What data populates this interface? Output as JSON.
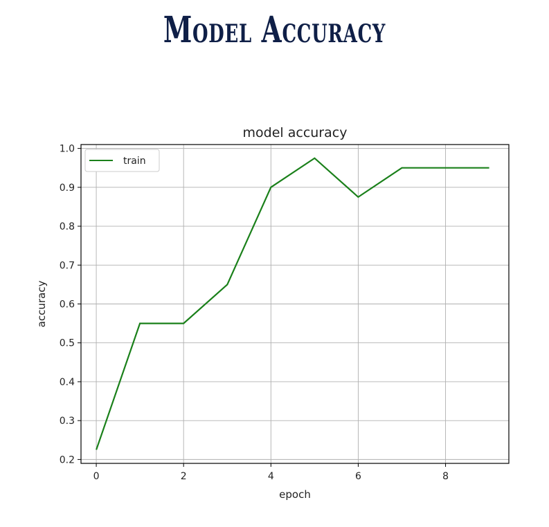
{
  "page_title": "Model Accuracy",
  "chart_data": {
    "type": "line",
    "title": "model accuracy",
    "xlabel": "epoch",
    "ylabel": "accuracy",
    "xlim": [
      -0.35,
      9.45
    ],
    "ylim": [
      0.19,
      1.01
    ],
    "xticks": [
      0,
      2,
      4,
      6,
      8
    ],
    "yticks": [
      0.2,
      0.3,
      0.4,
      0.5,
      0.6,
      0.7,
      0.8,
      0.9,
      1.0
    ],
    "grid": true,
    "legend_position": "top-left",
    "series": [
      {
        "name": "train",
        "color": "#1a801a",
        "x": [
          0,
          1,
          2,
          3,
          4,
          5,
          6,
          7,
          8,
          9
        ],
        "y": [
          0.225,
          0.55,
          0.55,
          0.65,
          0.9,
          0.975,
          0.875,
          0.95,
          0.95,
          0.95
        ]
      }
    ]
  }
}
